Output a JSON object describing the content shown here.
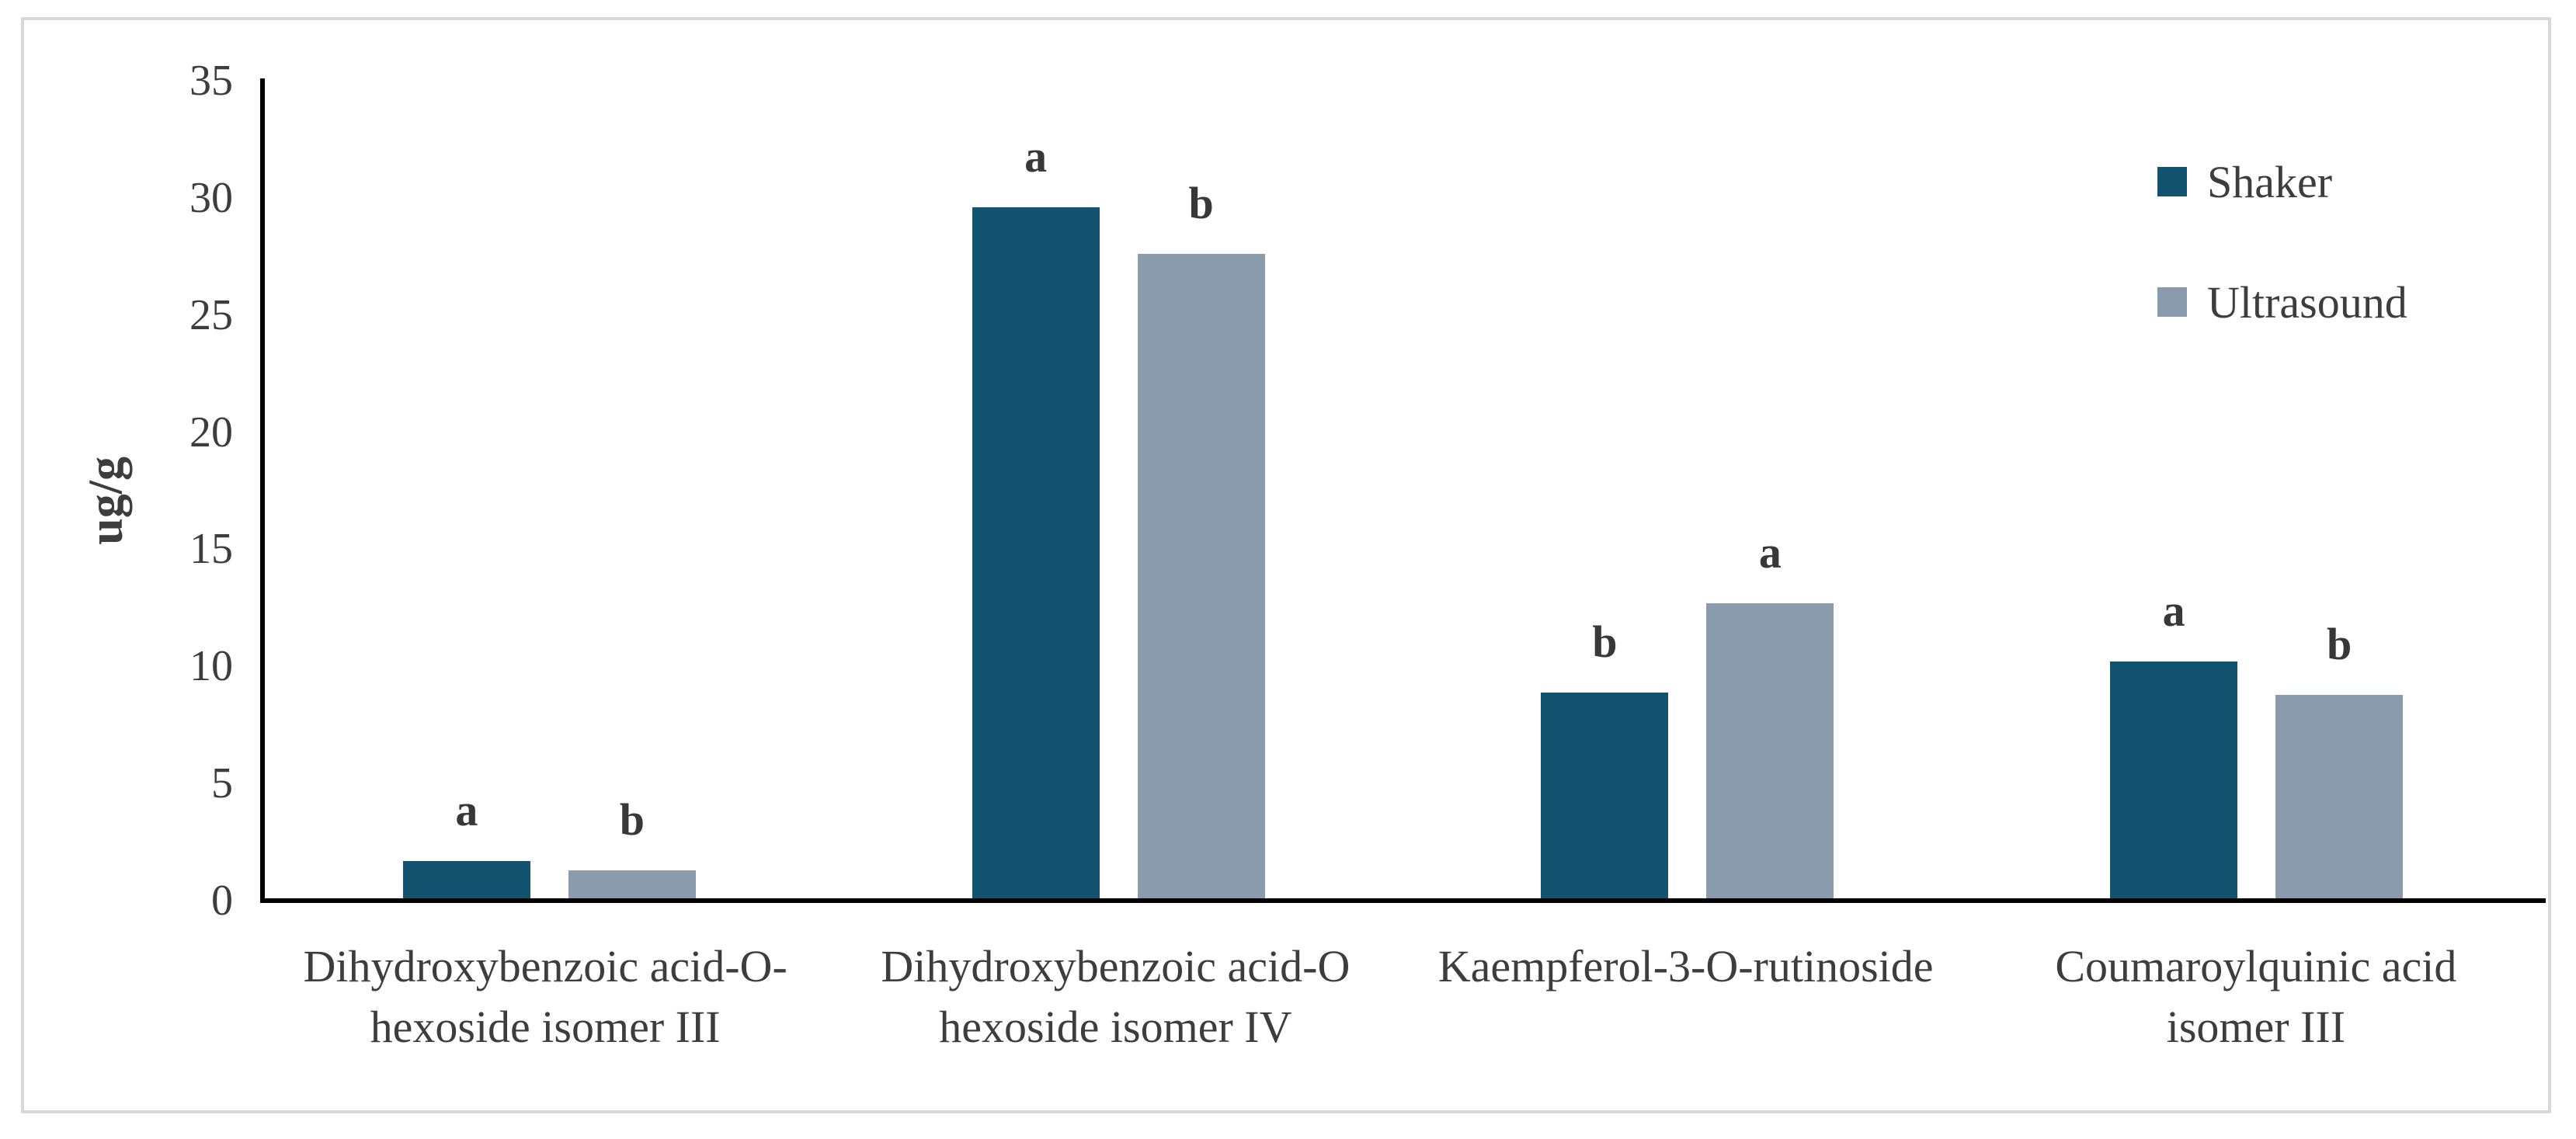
{
  "chart_data": {
    "type": "bar",
    "title": "",
    "ylabel": "ug/g",
    "xlabel": "",
    "ylim": [
      0,
      35
    ],
    "ytick_step": 5,
    "ytick_labels": [
      "0",
      "5",
      "10",
      "15",
      "20",
      "25",
      "30",
      "35"
    ],
    "grid": false,
    "legend_position": "top-right-inside",
    "categories": [
      "Dihydroxybenzoic acid-O-hexoside isomer III",
      "Dihydroxybenzoic acid-O hexoside isomer IV",
      "Kaempferol-3-O-rutinoside",
      "Coumaroylquinic acid isomer III"
    ],
    "category_lines": [
      [
        "Dihydroxybenzoic acid-O-",
        "hexoside isomer III"
      ],
      [
        "Dihydroxybenzoic acid-O",
        "hexoside isomer IV"
      ],
      [
        "Kaempferol-3-O-rutinoside"
      ],
      [
        "Coumaroylquinic acid",
        "isomer III"
      ]
    ],
    "series": [
      {
        "name": "Shaker",
        "color": "#14536F",
        "values": [
          1.6,
          29.5,
          8.8,
          10.1
        ],
        "sig_letters": [
          "a",
          "a",
          "b",
          "a"
        ]
      },
      {
        "name": "Ultrasound",
        "color": "#8A9BAD",
        "values": [
          1.2,
          27.5,
          12.6,
          8.7
        ],
        "sig_letters": [
          "b",
          "b",
          "a",
          "b"
        ]
      }
    ]
  },
  "colors": {
    "axis_line": "#000000",
    "tick_text": "#3D3D3D",
    "letter_text": "#383838",
    "figure_border": "#D8D8D8",
    "background": "#FFFFFF"
  }
}
